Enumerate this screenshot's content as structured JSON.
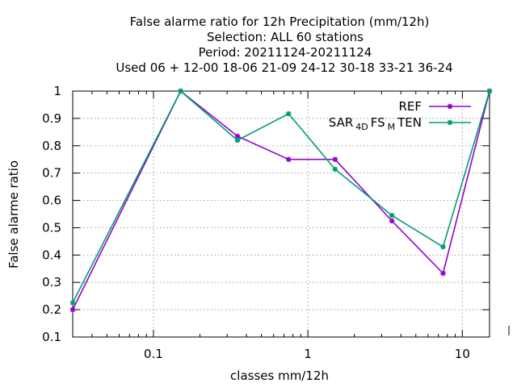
{
  "chart_data": {
    "type": "line",
    "title": [
      "False alarme ratio  for 12h Precipitation (mm/12h)",
      "Selection: ALL     60 stations",
      "Period: 20211124-20211124",
      "Used  06 + 12-00 18-06 21-09 24-12 30-18 33-21 36-24"
    ],
    "xlabel": "classes mm/12h",
    "ylabel": "False alarme ratio",
    "xscale": "log",
    "xlim": [
      0.03,
      15
    ],
    "ylim": [
      0.1,
      1.0
    ],
    "xticks": [
      {
        "value": 0.1,
        "label": "0.1"
      },
      {
        "value": 1,
        "label": "1"
      },
      {
        "value": 10,
        "label": "10"
      }
    ],
    "yticks": [
      {
        "value": 0.1,
        "label": "0.1"
      },
      {
        "value": 0.2,
        "label": "0.2"
      },
      {
        "value": 0.3,
        "label": "0.3"
      },
      {
        "value": 0.4,
        "label": "0.4"
      },
      {
        "value": 0.5,
        "label": "0.5"
      },
      {
        "value": 0.6,
        "label": "0.6"
      },
      {
        "value": 0.7,
        "label": "0.7"
      },
      {
        "value": 0.8,
        "label": "0.8"
      },
      {
        "value": 0.9,
        "label": "0.9"
      },
      {
        "value": 1.0,
        "label": "1"
      }
    ],
    "grid": true,
    "legend_position": "top-right",
    "series": [
      {
        "name": "REF",
        "color": "#9400d3",
        "x": [
          0.03,
          0.15,
          0.35,
          0.75,
          1.5,
          3.5,
          7.5,
          15
        ],
        "y": [
          0.2,
          1.0,
          0.835,
          0.75,
          0.75,
          0.525,
          0.333,
          1.0
        ]
      },
      {
        "name": "SAR_4D FS_M TEN",
        "legend_parts": [
          {
            "text": "SAR",
            "sub": false
          },
          {
            "text": "4D",
            "sub": true
          },
          {
            "text": "FS",
            "sub": false
          },
          {
            "text": "M",
            "sub": true
          },
          {
            "text": "TEN",
            "sub": false
          }
        ],
        "color": "#009e73",
        "x": [
          0.03,
          0.15,
          0.35,
          0.75,
          1.5,
          3.5,
          7.5,
          15
        ],
        "y": [
          0.225,
          1.0,
          0.82,
          0.917,
          0.714,
          0.545,
          0.43,
          1.0
        ]
      }
    ]
  }
}
